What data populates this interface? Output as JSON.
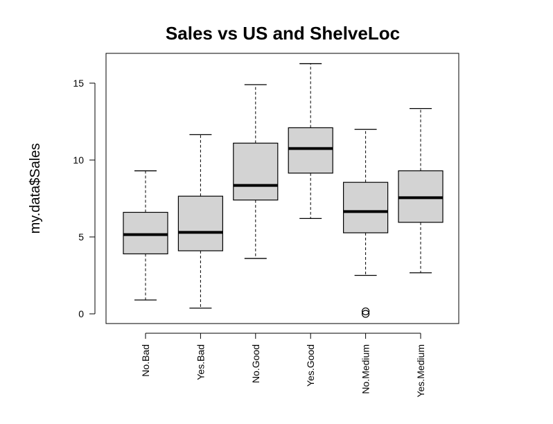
{
  "chart_data": {
    "type": "boxplot",
    "title": "Sales vs US and ShelveLoc",
    "xlabel": "",
    "ylabel": "my.data$Sales",
    "ylim": [
      -0.5,
      17.0
    ],
    "yticks": [
      0,
      5,
      10,
      15
    ],
    "box_fill": "#d3d3d3",
    "categories": [
      "No.Bad",
      "Yes.Bad",
      "No.Good",
      "Yes.Good",
      "No.Medium",
      "Yes.Medium"
    ],
    "boxes": [
      {
        "label": "No.Bad",
        "whisker_low": 0.9,
        "q1": 3.9,
        "median": 5.15,
        "q3": 6.6,
        "whisker_high": 9.3,
        "outliers": []
      },
      {
        "label": "Yes.Bad",
        "whisker_low": 0.37,
        "q1": 4.1,
        "median": 5.3,
        "q3": 7.65,
        "whisker_high": 11.65,
        "outliers": []
      },
      {
        "label": "No.Good",
        "whisker_low": 3.6,
        "q1": 7.4,
        "median": 8.35,
        "q3": 11.1,
        "whisker_high": 14.9,
        "outliers": []
      },
      {
        "label": "Yes.Good",
        "whisker_low": 6.2,
        "q1": 9.15,
        "median": 10.75,
        "q3": 12.1,
        "whisker_high": 16.27,
        "outliers": []
      },
      {
        "label": "No.Medium",
        "whisker_low": 2.5,
        "q1": 5.27,
        "median": 6.65,
        "q3": 8.55,
        "whisker_high": 12.0,
        "outliers": [
          0.0,
          0.16
        ]
      },
      {
        "label": "Yes.Medium",
        "whisker_low": 2.67,
        "q1": 5.95,
        "median": 7.55,
        "q3": 9.3,
        "whisker_high": 13.35,
        "outliers": []
      }
    ]
  }
}
